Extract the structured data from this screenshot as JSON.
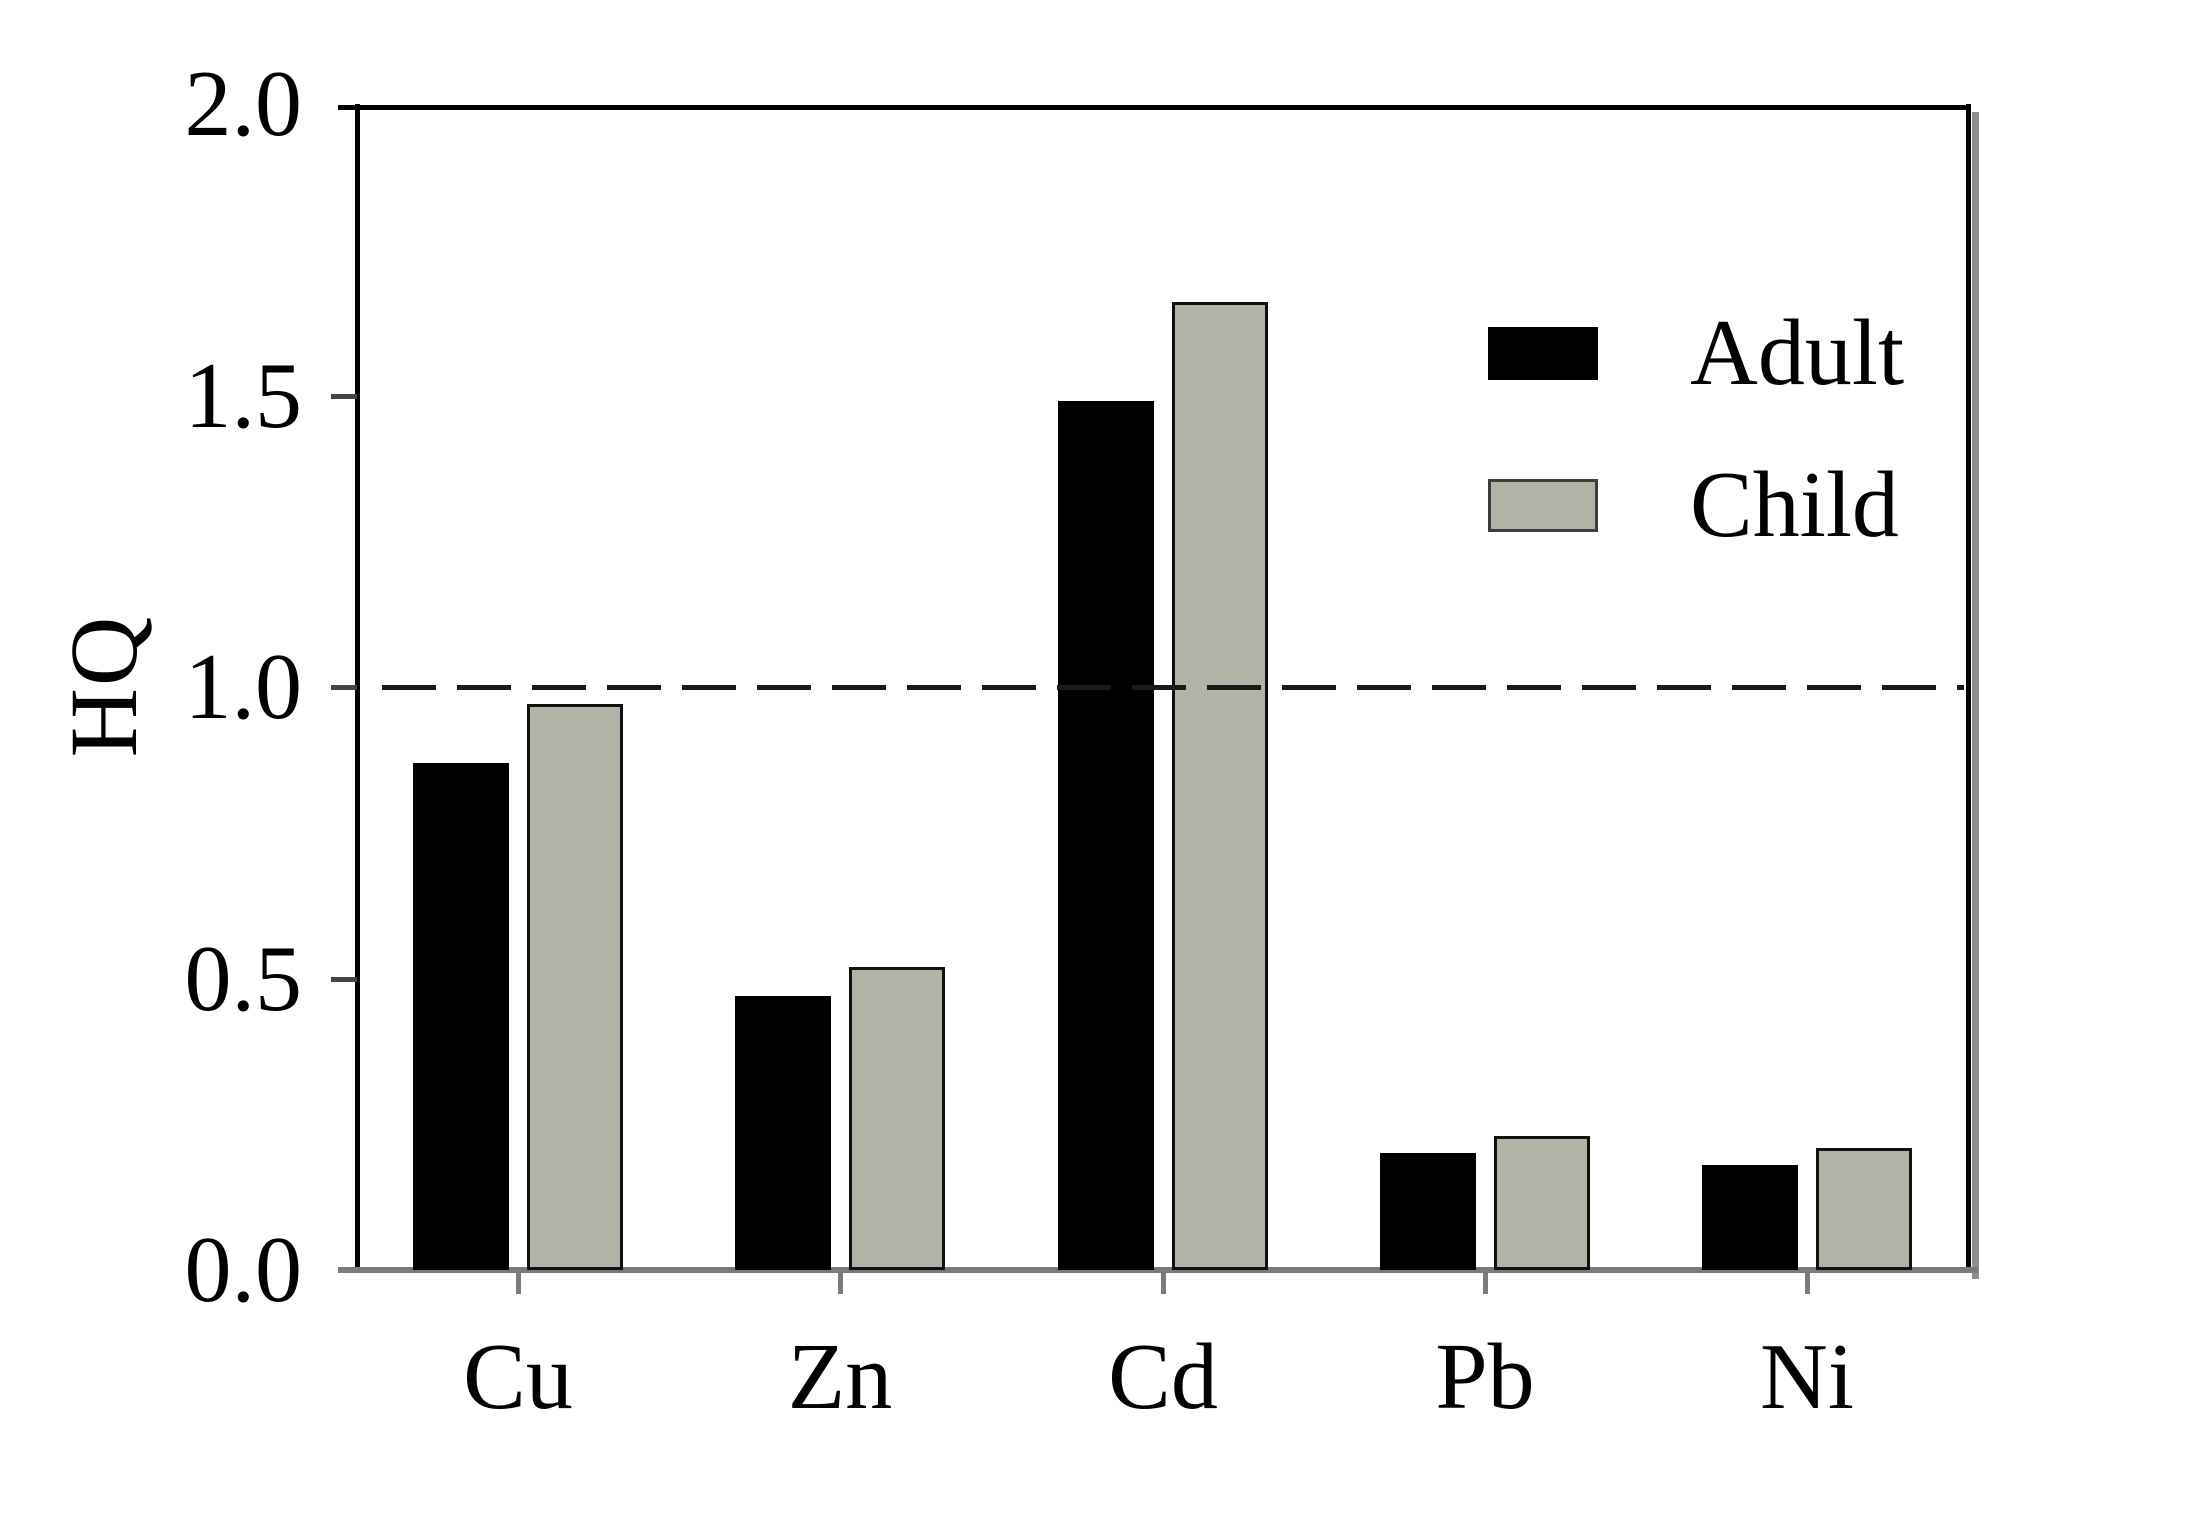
{
  "figure": {
    "background": "#ffffff"
  },
  "chart_data": {
    "type": "bar",
    "title": "",
    "xlabel": "",
    "ylabel": "HQ",
    "categories": [
      "Cu",
      "Zn",
      "Cd",
      "Pb",
      "Ni"
    ],
    "series": [
      {
        "name": "Adult",
        "color": "#000000",
        "values": [
          0.87,
          0.47,
          1.49,
          0.2,
          0.18
        ]
      },
      {
        "name": "Child",
        "color": "#b2b2a6",
        "values": [
          0.97,
          0.52,
          1.66,
          0.23,
          0.21
        ]
      }
    ],
    "ylim": [
      0.0,
      2.0
    ],
    "yticks": [
      0.0,
      0.5,
      1.0,
      1.5,
      2.0
    ],
    "ytick_labels": [
      "0.0",
      "0.5",
      "1.0",
      "1.5",
      "2.0"
    ],
    "reference_line": {
      "value": 1.0,
      "style": "dashed",
      "color": "#1a1a1a"
    },
    "legend": {
      "position": "upper-right",
      "entries": [
        "Adult",
        "Child"
      ]
    },
    "grid": false,
    "bar_border_color": "#111111",
    "axis_color": "#000000",
    "baseline_color": "#7a7a7a"
  }
}
